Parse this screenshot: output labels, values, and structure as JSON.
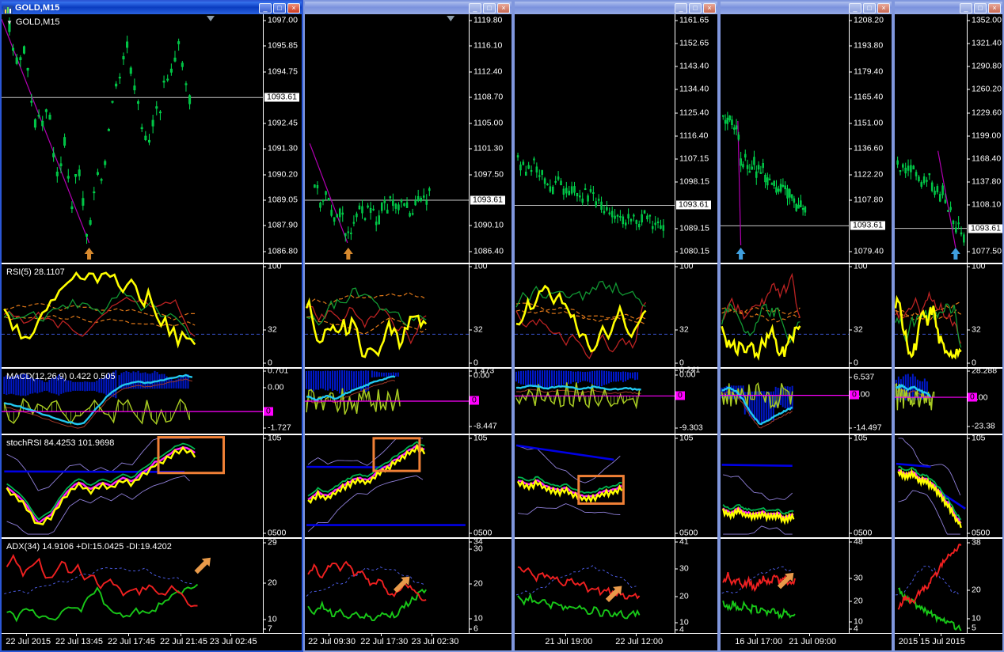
{
  "window_controls": {
    "minimize": "_",
    "maximize": "□",
    "close": "×"
  },
  "windows": [
    {
      "title": "GOLD,M15",
      "symbol_label": "GOLD,M15",
      "symbol_dropdown": "▼",
      "price_ticks": [
        "1097.00",
        "1095.85",
        "1094.75",
        "1093.61",
        "1092.45",
        "1091.30",
        "1090.20",
        "1089.05",
        "1087.90",
        "1086.80"
      ],
      "price_box_value": "1093.61",
      "rsi_label": "RSI(5) 28.1107",
      "rsi_scale": [
        "100",
        "32",
        "0"
      ],
      "macd_label": "MACD(12,26,9) 0.422 0.505",
      "macd_scale": {
        "top": "0.701",
        "zero": "0.00",
        "box": "0",
        "bottom": "-1.727"
      },
      "stoch_label": "stochRSI 84.4253 101.9698",
      "stoch_scale": {
        "top": "105",
        "bottom": "0500"
      },
      "adx_label": "ADX(34) 14.9106 +DI:15.0425 -DI:19.4202",
      "adx_scale": [
        "29",
        "20",
        "10",
        "7"
      ],
      "time_labels": [
        "22 Jul 2015",
        "22 Jul 13:45",
        "22 Jul 17:45",
        "22 Jul 21:45",
        "23 Jul 02:45"
      ]
    },
    {
      "title": "",
      "symbol_label": "",
      "symbol_dropdown": "",
      "price_ticks": [
        "1119.80",
        "1116.10",
        "1112.40",
        "1108.70",
        "1105.00",
        "1101.30",
        "1097.50",
        "1093.61",
        "1090.10",
        "1086.40"
      ],
      "price_box_value": "1093.61",
      "rsi_label": "",
      "rsi_scale": [
        "100",
        "32",
        "0"
      ],
      "macd_label": "",
      "macd_scale": {
        "top": "1.473",
        "zero": "0.00",
        "box": "0",
        "bottom": "-8.447"
      },
      "stoch_label": "",
      "stoch_scale": {
        "top": "105",
        "bottom": "0500"
      },
      "adx_label": "",
      "adx_scale": [
        "34",
        "30",
        "20",
        "10",
        "6"
      ],
      "time_labels": [
        "22 Jul 09:30",
        "22 Jul 17:30",
        "23 Jul 02:30"
      ]
    },
    {
      "title": "",
      "symbol_label": "",
      "symbol_dropdown": "",
      "price_ticks": [
        "1161.65",
        "1152.65",
        "1143.40",
        "1134.40",
        "1125.40",
        "1116.40",
        "1107.15",
        "1098.15",
        "1093.61",
        "1089.15",
        "1080.15"
      ],
      "price_box_value": "1093.61",
      "rsi_label": "",
      "rsi_scale": [
        "100",
        "32",
        "0"
      ],
      "macd_label": "",
      "macd_scale": {
        "top": "0.241",
        "zero": "0.00",
        "box": "0",
        "bottom": "-9.303"
      },
      "stoch_label": "",
      "stoch_scale": {
        "top": "105",
        "bottom": "0500"
      },
      "adx_label": "",
      "adx_scale": [
        "41",
        "30",
        "20",
        "10",
        "4"
      ],
      "time_labels": [
        "21 Jul 19:00",
        "22 Jul 12:00"
      ]
    },
    {
      "title": "",
      "symbol_label": "",
      "symbol_dropdown": "",
      "price_ticks": [
        "1208.20",
        "1193.80",
        "1179.40",
        "1165.40",
        "1151.00",
        "1136.60",
        "1122.20",
        "1107.80",
        "1093.61",
        "1079.40"
      ],
      "price_box_value": "1093.61",
      "rsi_label": "",
      "rsi_scale": [
        "100",
        "32",
        "0"
      ],
      "macd_label": "",
      "macd_scale": {
        "top": "6.537",
        "zero": "0.00",
        "box": "0",
        "bottom": "-14.497"
      },
      "stoch_label": "",
      "stoch_scale": {
        "top": "105",
        "bottom": "0500"
      },
      "adx_label": "",
      "adx_scale": [
        "48",
        "30",
        "20",
        "10",
        "4"
      ],
      "time_labels": [
        "16 Jul 17:00",
        "21 Jul 09:00"
      ]
    },
    {
      "title": "",
      "symbol_label": "",
      "symbol_dropdown": "",
      "price_ticks": [
        "1352.00",
        "1321.40",
        "1290.80",
        "1260.20",
        "1229.60",
        "1199.00",
        "1168.40",
        "1137.80",
        "1108.10",
        "1093.61",
        "1077.50"
      ],
      "price_box_value": "1093.61",
      "rsi_label": "",
      "rsi_scale": [
        "100",
        "32",
        "0"
      ],
      "macd_label": "",
      "macd_scale": {
        "top": "28.288",
        "zero": "0.00",
        "box": "0",
        "bottom": "-23.38"
      },
      "stoch_label": "",
      "stoch_scale": {
        "top": "105",
        "bottom": "0500"
      },
      "adx_label": "",
      "adx_scale": [
        "38",
        "20",
        "10",
        "5"
      ],
      "time_labels": [
        "2015",
        "15 Jul 2015"
      ]
    }
  ]
}
